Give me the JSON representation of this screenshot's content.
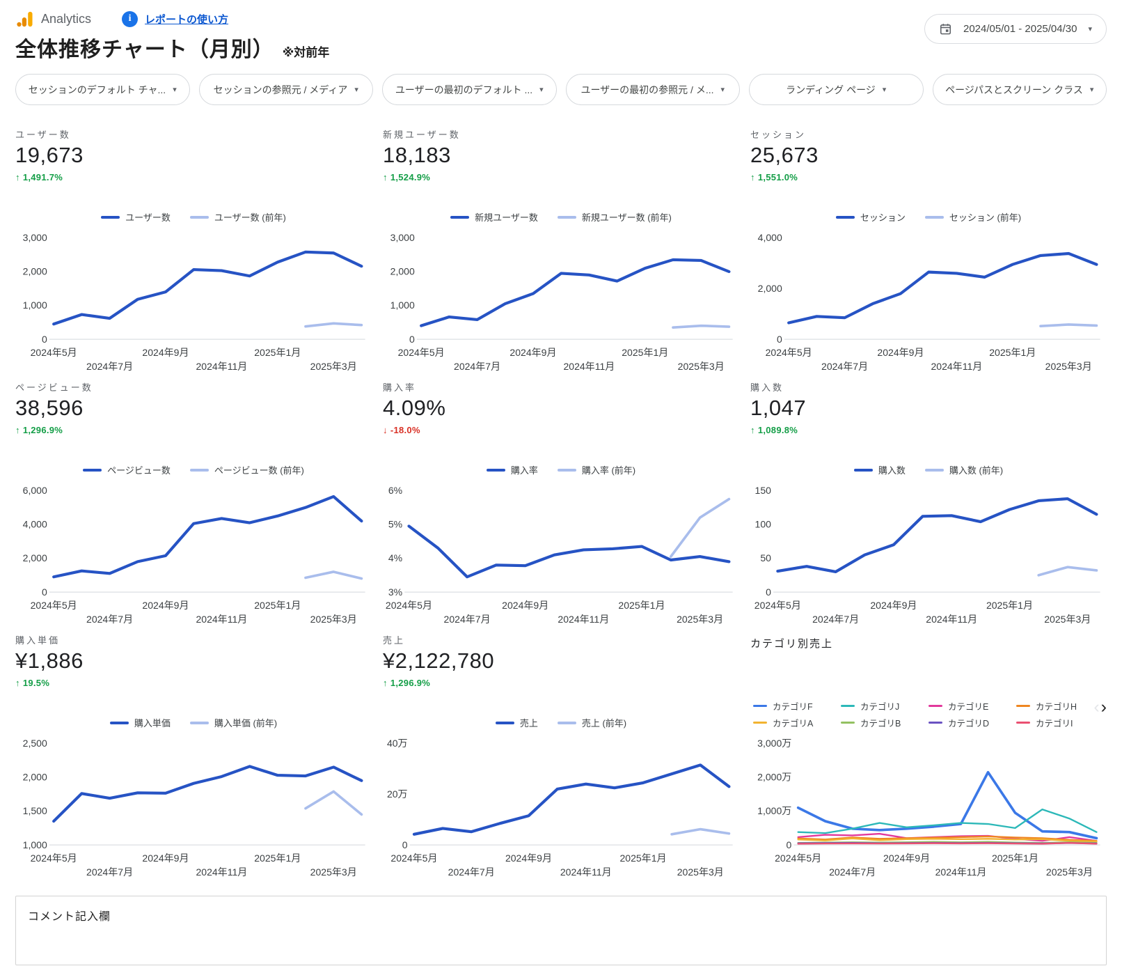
{
  "header": {
    "product": "Analytics",
    "help_link": "レポートの使い方",
    "title": "全体推移チャート（月別）",
    "title_note": "※対前年",
    "date_range": "2024/05/01 - 2025/04/30"
  },
  "icons": {
    "up_arrow": "↑",
    "down_arrow": "↓",
    "caret": "▾",
    "nav_prev": "‹",
    "nav_next": "›"
  },
  "palette": {
    "current": "#2653c4",
    "previous": "#a9bdec",
    "delta_up": "#149e47",
    "delta_down": "#d93025"
  },
  "filters": [
    "セッションのデフォルト チャ...",
    "セッションの参照元 / メディア",
    "ユーザーの最初のデフォルト ...",
    "ユーザーの最初の参照元 / メ...",
    "ランディング ページ",
    "ページパスとスクリーン クラス"
  ],
  "x_labels": [
    "2024年5月",
    "2024年7月",
    "2024年9月",
    "2024年11月",
    "2025年1月",
    "2025年3月"
  ],
  "chart_data": [
    {
      "id": "users",
      "type": "line",
      "kpi_label": "ユーザー数",
      "kpi_value": "19,673",
      "delta": "1,491.7%",
      "delta_dir": "up",
      "y_min": 0,
      "y_max": 3000,
      "y_ticks": [
        {
          "v": 0,
          "label": "0"
        },
        {
          "v": 1000,
          "label": "1,000"
        },
        {
          "v": 2000,
          "label": "2,000"
        },
        {
          "v": 3000,
          "label": "3,000"
        }
      ],
      "series": [
        {
          "name": "ユーザー数",
          "color": "#2653c4",
          "width": 4,
          "values": [
            450,
            730,
            620,
            1180,
            1400,
            2060,
            2030,
            1870,
            2280,
            2580,
            2550,
            2160
          ]
        },
        {
          "name": "ユーザー数 (前年)",
          "color": "#a9bdec",
          "width": 3.5,
          "values": [
            null,
            null,
            null,
            null,
            null,
            null,
            null,
            null,
            null,
            380,
            470,
            420
          ]
        }
      ]
    },
    {
      "id": "new-users",
      "type": "line",
      "kpi_label": "新規ユーザー数",
      "kpi_value": "18,183",
      "delta": "1,524.9%",
      "delta_dir": "up",
      "y_min": 0,
      "y_max": 3000,
      "y_ticks": [
        {
          "v": 0,
          "label": "0"
        },
        {
          "v": 1000,
          "label": "1,000"
        },
        {
          "v": 2000,
          "label": "2,000"
        },
        {
          "v": 3000,
          "label": "3,000"
        }
      ],
      "series": [
        {
          "name": "新規ユーザー数",
          "color": "#2653c4",
          "width": 4,
          "values": [
            400,
            660,
            580,
            1050,
            1350,
            1950,
            1900,
            1720,
            2100,
            2350,
            2330,
            2000
          ]
        },
        {
          "name": "新規ユーザー数 (前年)",
          "color": "#a9bdec",
          "width": 3.5,
          "values": [
            null,
            null,
            null,
            null,
            null,
            null,
            null,
            null,
            null,
            350,
            400,
            370
          ]
        }
      ]
    },
    {
      "id": "sessions",
      "type": "line",
      "kpi_label": "セッション",
      "kpi_value": "25,673",
      "delta": "1,551.0%",
      "delta_dir": "up",
      "y_min": 0,
      "y_max": 4000,
      "y_ticks": [
        {
          "v": 0,
          "label": "0"
        },
        {
          "v": 2000,
          "label": "2,000"
        },
        {
          "v": 4000,
          "label": "4,000"
        }
      ],
      "series": [
        {
          "name": "セッション",
          "color": "#2653c4",
          "width": 4,
          "values": [
            650,
            900,
            850,
            1400,
            1800,
            2650,
            2600,
            2450,
            2950,
            3300,
            3380,
            2950
          ]
        },
        {
          "name": "セッション (前年)",
          "color": "#a9bdec",
          "width": 3.5,
          "values": [
            null,
            null,
            null,
            null,
            null,
            null,
            null,
            null,
            null,
            520,
            580,
            540
          ]
        }
      ]
    },
    {
      "id": "pageviews",
      "type": "line",
      "kpi_label": "ページビュー数",
      "kpi_value": "38,596",
      "delta": "1,296.9%",
      "delta_dir": "up",
      "y_min": 0,
      "y_max": 6000,
      "y_ticks": [
        {
          "v": 0,
          "label": "0"
        },
        {
          "v": 2000,
          "label": "2,000"
        },
        {
          "v": 4000,
          "label": "4,000"
        },
        {
          "v": 6000,
          "label": "6,000"
        }
      ],
      "series": [
        {
          "name": "ページビュー数",
          "color": "#2653c4",
          "width": 4,
          "values": [
            900,
            1250,
            1100,
            1800,
            2150,
            4050,
            4350,
            4100,
            4500,
            5000,
            5650,
            4200
          ]
        },
        {
          "name": "ページビュー数 (前年)",
          "color": "#a9bdec",
          "width": 3.5,
          "values": [
            null,
            null,
            null,
            null,
            null,
            null,
            null,
            null,
            null,
            850,
            1200,
            800
          ]
        }
      ]
    },
    {
      "id": "purchase-rate",
      "type": "line",
      "kpi_label": "購入率",
      "kpi_value": "4.09%",
      "delta": "-18.0%",
      "delta_dir": "down",
      "y_min": 3,
      "y_max": 6,
      "y_ticks": [
        {
          "v": 3,
          "label": "3%"
        },
        {
          "v": 4,
          "label": "4%"
        },
        {
          "v": 5,
          "label": "5%"
        },
        {
          "v": 6,
          "label": "6%"
        }
      ],
      "series": [
        {
          "name": "購入率",
          "color": "#2653c4",
          "width": 4,
          "values": [
            4.95,
            4.3,
            3.45,
            3.8,
            3.78,
            4.1,
            4.25,
            4.28,
            4.35,
            3.95,
            4.05,
            3.9
          ]
        },
        {
          "name": "購入率 (前年)",
          "color": "#a9bdec",
          "width": 3.5,
          "values": [
            null,
            null,
            null,
            null,
            null,
            null,
            null,
            null,
            null,
            4.05,
            5.2,
            5.75
          ]
        }
      ]
    },
    {
      "id": "purchases",
      "type": "line",
      "kpi_label": "購入数",
      "kpi_value": "1,047",
      "delta": "1,089.8%",
      "delta_dir": "up",
      "y_min": 0,
      "y_max": 150,
      "y_ticks": [
        {
          "v": 0,
          "label": "0"
        },
        {
          "v": 50,
          "label": "50"
        },
        {
          "v": 100,
          "label": "100"
        },
        {
          "v": 150,
          "label": "150"
        }
      ],
      "series": [
        {
          "name": "購入数",
          "color": "#2653c4",
          "width": 4,
          "values": [
            31,
            38,
            30,
            55,
            70,
            112,
            113,
            104,
            122,
            135,
            138,
            115
          ]
        },
        {
          "name": "購入数 (前年)",
          "color": "#a9bdec",
          "width": 3.5,
          "values": [
            null,
            null,
            null,
            null,
            null,
            null,
            null,
            null,
            null,
            25,
            37,
            32
          ]
        }
      ]
    },
    {
      "id": "unit-price",
      "type": "line",
      "kpi_label": "購入単価",
      "kpi_value": "¥1,886",
      "delta": "19.5%",
      "delta_dir": "up",
      "y_min": 1000,
      "y_max": 2500,
      "y_ticks": [
        {
          "v": 1000,
          "label": "1,000"
        },
        {
          "v": 1500,
          "label": "1,500"
        },
        {
          "v": 2000,
          "label": "2,000"
        },
        {
          "v": 2500,
          "label": "2,500"
        }
      ],
      "series": [
        {
          "name": "購入単価",
          "color": "#2653c4",
          "width": 4,
          "values": [
            1350,
            1760,
            1690,
            1770,
            1765,
            1910,
            2010,
            2160,
            2030,
            2020,
            2150,
            1950
          ]
        },
        {
          "name": "購入単価 (前年)",
          "color": "#a9bdec",
          "width": 3.5,
          "values": [
            null,
            null,
            null,
            null,
            null,
            null,
            null,
            null,
            null,
            1540,
            1790,
            1450
          ]
        }
      ]
    },
    {
      "id": "revenue",
      "type": "line",
      "kpi_label": "売上",
      "kpi_value": "¥2,122,780",
      "delta": "1,296.9%",
      "delta_dir": "up",
      "y_min": 0,
      "y_max": 40,
      "y_ticks": [
        {
          "v": 0,
          "label": "0"
        },
        {
          "v": 20,
          "label": "20万"
        },
        {
          "v": 40,
          "label": "40万"
        }
      ],
      "series": [
        {
          "name": "売上",
          "color": "#2653c4",
          "width": 4,
          "values": [
            4.2,
            6.5,
            5.2,
            8.5,
            11.5,
            22,
            24,
            22.5,
            24.5,
            28,
            31.5,
            23
          ]
        },
        {
          "name": "売上 (前年)",
          "color": "#a9bdec",
          "width": 3.5,
          "values": [
            null,
            null,
            null,
            null,
            null,
            null,
            null,
            null,
            null,
            4.2,
            6.2,
            4.5
          ]
        }
      ]
    },
    {
      "id": "category-sales",
      "type": "line",
      "title": "カテゴリ別売上",
      "legend_columns": 4,
      "y_min": 0,
      "y_max": 3000,
      "y_ticks": [
        {
          "v": 0,
          "label": "0"
        },
        {
          "v": 1000,
          "label": "1,000万"
        },
        {
          "v": 2000,
          "label": "2,000万"
        },
        {
          "v": 3000,
          "label": "3,000万"
        }
      ],
      "series": [
        {
          "name": "カテゴリF",
          "color": "#3b78e7",
          "width": 3.5,
          "values": [
            1100,
            700,
            480,
            440,
            480,
            540,
            620,
            2150,
            950,
            400,
            380,
            200
          ]
        },
        {
          "name": "カテゴリJ",
          "color": "#2cb8b8",
          "width": 2.25,
          "values": [
            380,
            350,
            480,
            650,
            520,
            580,
            650,
            620,
            500,
            1050,
            780,
            380
          ]
        },
        {
          "name": "カテゴリE",
          "color": "#e2399c",
          "width": 2.25,
          "values": [
            230,
            300,
            280,
            330,
            200,
            230,
            260,
            270,
            180,
            120,
            230,
            120
          ]
        },
        {
          "name": "カテゴリH",
          "color": "#ef8621",
          "width": 2.25,
          "values": [
            190,
            160,
            220,
            180,
            200,
            215,
            230,
            250,
            220,
            200,
            150,
            120
          ]
        },
        {
          "name": "カテゴリA",
          "color": "#f2b330",
          "width": 2.25,
          "values": [
            160,
            130,
            190,
            140,
            170,
            180,
            170,
            180,
            160,
            170,
            120,
            100
          ]
        },
        {
          "name": "カテゴリB",
          "color": "#93c161",
          "width": 2.25,
          "values": [
            60,
            70,
            80,
            70,
            80,
            90,
            80,
            90,
            70,
            60,
            80,
            60
          ]
        },
        {
          "name": "カテゴリD",
          "color": "#6a52c2",
          "width": 2.25,
          "values": [
            50,
            55,
            60,
            50,
            55,
            60,
            55,
            60,
            50,
            45,
            55,
            45
          ]
        },
        {
          "name": "カテゴリI",
          "color": "#ea5071",
          "width": 2.25,
          "values": [
            35,
            40,
            45,
            40,
            45,
            50,
            45,
            50,
            40,
            35,
            60,
            35
          ]
        }
      ]
    }
  ],
  "comment": {
    "label": "コメント記入欄"
  }
}
